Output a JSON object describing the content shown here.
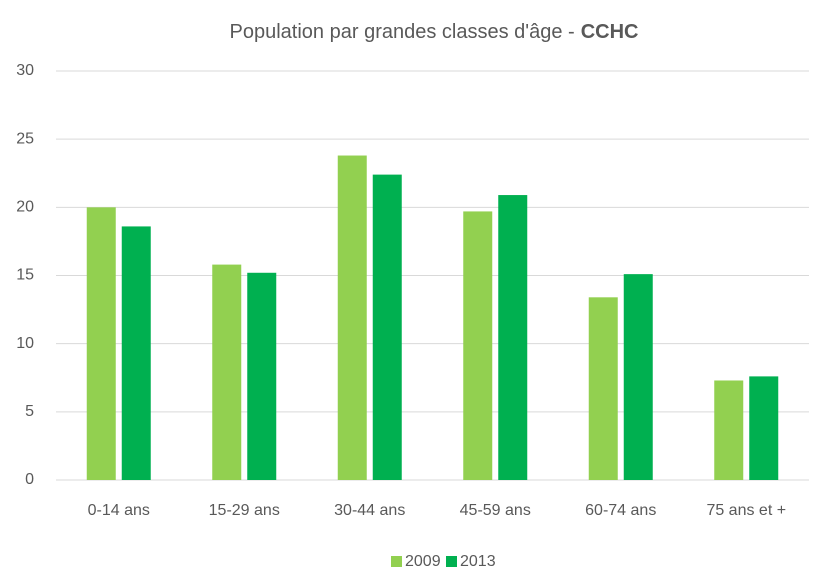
{
  "chart_data": {
    "type": "bar",
    "title": [
      "Population par grandes classes d'âge -",
      "CCHC"
    ],
    "categories": [
      "0-14 ans",
      "15-29 ans",
      "30-44 ans",
      "45-59 ans",
      "60-74 ans",
      "75 ans et +"
    ],
    "series": [
      {
        "name": "2009",
        "color": "#92d050",
        "values": [
          20.0,
          15.8,
          23.8,
          19.7,
          13.4,
          7.3
        ]
      },
      {
        "name": "2013",
        "color": "#00b050",
        "values": [
          18.6,
          15.2,
          22.4,
          20.9,
          15.1,
          7.6
        ]
      }
    ],
    "ylim": [
      0,
      30
    ],
    "yticks": [
      0,
      5,
      10,
      15,
      20,
      25,
      30
    ],
    "grid": true,
    "legend": "bottom"
  }
}
